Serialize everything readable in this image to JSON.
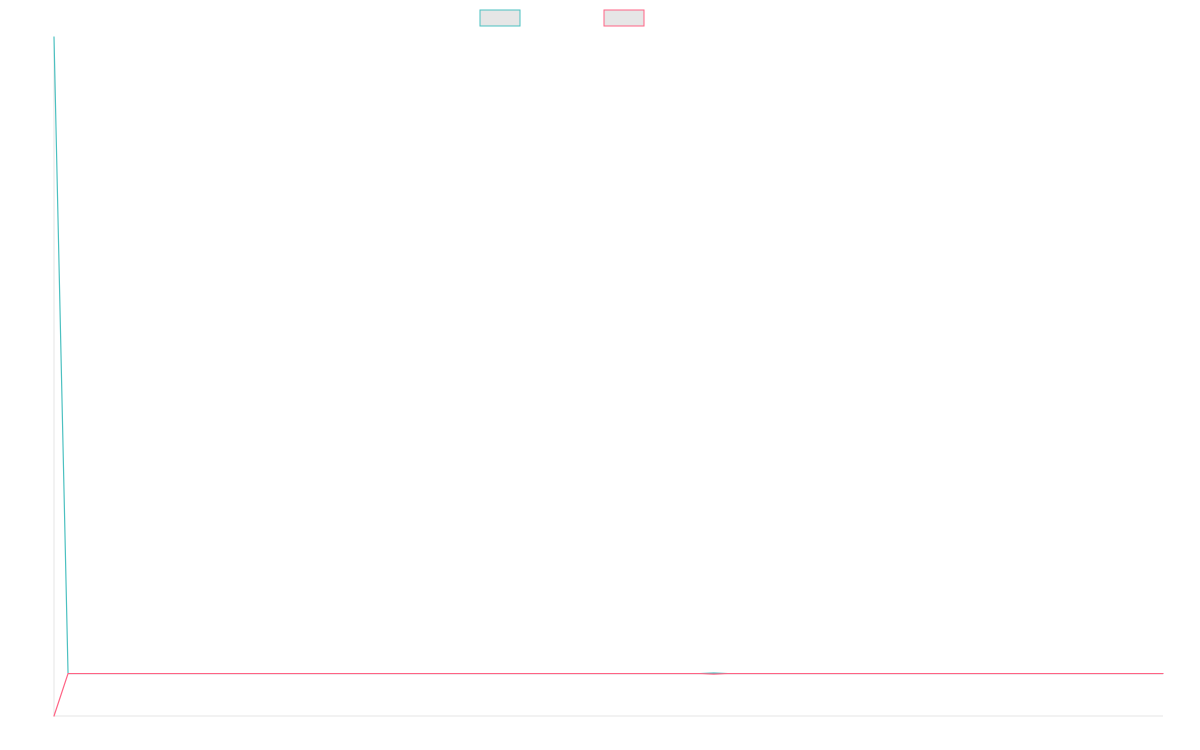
{
  "chart_data": {
    "type": "line",
    "title": "",
    "xlabel": "",
    "ylabel": "",
    "grid": false,
    "legend": "top-center",
    "xlim": [
      0,
      79
    ],
    "ylim": [
      -4,
      60
    ],
    "x": [
      0,
      1,
      2,
      3,
      4,
      5,
      6,
      7,
      8,
      9,
      10,
      11,
      12,
      13,
      14,
      15,
      16,
      17,
      18,
      19,
      20,
      21,
      22,
      23,
      24,
      25,
      26,
      27,
      28,
      29,
      30,
      31,
      32,
      33,
      34,
      35,
      36,
      37,
      38,
      39,
      40,
      41,
      42,
      43,
      44,
      45,
      46,
      47,
      48,
      49,
      50,
      51,
      52,
      53,
      54,
      55,
      56,
      57,
      58,
      59,
      60,
      61,
      62,
      63,
      64,
      65,
      66,
      67,
      68,
      69,
      70,
      71,
      72,
      73,
      74,
      75,
      76,
      77,
      78,
      79
    ],
    "series": [
      {
        "color": "#4bc0c0",
        "fill": "#e6e6e6",
        "values": [
          60,
          0,
          0,
          0,
          0,
          0,
          0,
          0,
          0,
          0,
          0,
          0,
          0,
          0,
          0,
          0,
          0,
          0,
          0,
          0,
          0,
          0,
          0,
          0,
          0,
          0,
          0,
          0,
          0,
          0,
          0,
          0,
          0,
          0,
          0,
          0,
          0,
          0,
          0,
          0,
          0,
          0,
          0,
          0,
          0,
          0,
          0,
          0.05,
          0,
          0,
          0,
          0,
          0,
          0,
          0,
          0,
          0,
          0,
          0,
          0,
          0,
          0,
          0,
          0,
          0,
          0,
          0,
          0,
          0,
          0,
          0,
          0,
          0,
          0,
          0,
          0,
          0,
          0,
          0,
          0
        ]
      },
      {
        "color": "#ff6384",
        "fill": "#e6e6e6",
        "values": [
          -4,
          0,
          0,
          0,
          0,
          0,
          0,
          0,
          0,
          0,
          0,
          0,
          0,
          0,
          0,
          0,
          0,
          0,
          0,
          0,
          0,
          0,
          0,
          0,
          0,
          0,
          0,
          0,
          0,
          0,
          0,
          0,
          0,
          0,
          0,
          0,
          0,
          0,
          0,
          0,
          0,
          0,
          0,
          0,
          0,
          0,
          0,
          -0.05,
          0,
          0,
          0,
          0,
          0,
          0,
          0,
          0,
          0,
          0,
          0,
          0,
          0,
          0,
          0,
          0,
          0,
          0,
          0,
          0,
          0,
          0,
          0,
          0,
          0,
          0,
          0,
          0,
          0,
          0,
          0,
          0
        ]
      }
    ]
  }
}
